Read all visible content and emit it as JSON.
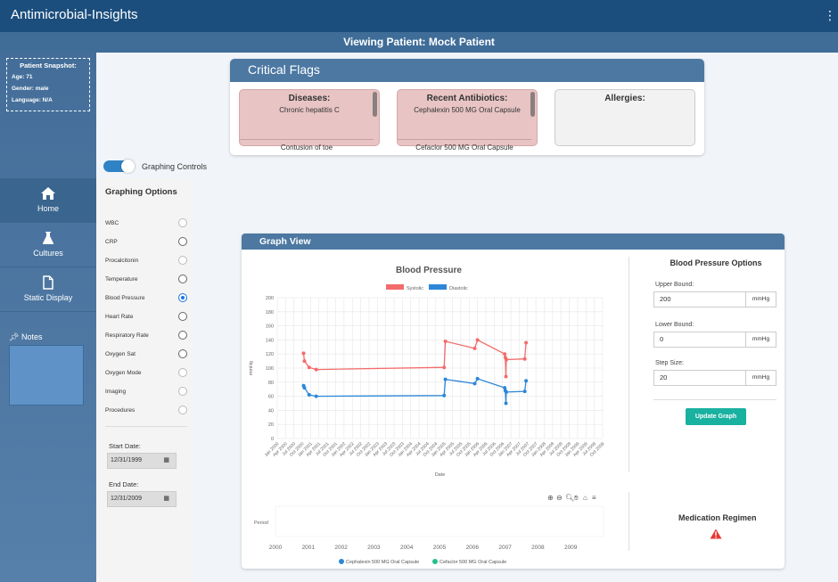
{
  "app": {
    "title": "Antimicrobial-Insights"
  },
  "patient_bar": "Viewing Patient: Mock Patient",
  "snapshot": {
    "title": "Patient Snapshot:",
    "age": "Age: 71",
    "gender": "Gender: male",
    "language": "Language: N/A"
  },
  "nav": {
    "home": "Home",
    "cultures": "Cultures",
    "static": "Static Display",
    "notes": "Notes"
  },
  "graphing_controls": "Graphing Controls",
  "options": {
    "title": "Graphing Options",
    "items": [
      "WBC",
      "CRP",
      "Procalcitonin",
      "Temperature",
      "Blood Pressure",
      "Heart Rate",
      "Respiratory Rate",
      "Oxygen Sat",
      "Oxygen Mode",
      "Imaging",
      "Procedures"
    ],
    "selected": "Blood Pressure",
    "start_label": "Start Date:",
    "start_value": "12/31/1999",
    "end_label": "End Date:",
    "end_value": "12/31/2009"
  },
  "flags": {
    "title": "Critical Flags",
    "diseases_title": "Diseases:",
    "diseases": [
      "Chronic hepatitis C",
      "Contusion of toe"
    ],
    "antibiotics_title": "Recent Antibiotics:",
    "antibiotics": [
      "Cephalexin 500 MG Oral Capsule",
      "Cefaclor 500 MG Oral Capsule"
    ],
    "allergies_title": "Allergies:"
  },
  "graph_view": {
    "title": "Graph View"
  },
  "bp_options": {
    "title": "Blood Pressure Options",
    "upper_label": "Upper Bound:",
    "upper_value": "200",
    "lower_label": "Lower Bound:",
    "lower_value": "0",
    "step_label": "Step Size:",
    "step_value": "20",
    "unit": "mmHg",
    "button": "Update Graph"
  },
  "medication_regimen": "Medication Regimen",
  "chart_data": [
    {
      "type": "line",
      "title": "Blood Pressure",
      "xlabel": "Date",
      "ylabel": "mmHg",
      "ylim": [
        0,
        200
      ],
      "yticks": [
        0,
        20,
        40,
        60,
        80,
        100,
        120,
        140,
        160,
        180,
        200
      ],
      "grid": true,
      "legend": "top",
      "x_range": [
        "2000-01",
        "2009-10"
      ],
      "x_ticks": [
        "Jan 2000",
        "Apr 2000",
        "Jul 2000",
        "Oct 2000",
        "Jan 2001",
        "Apr 2001",
        "Jul 2001",
        "Oct 2001",
        "Jan 2002",
        "Apr 2002",
        "Jul 2002",
        "Oct 2002",
        "Jan 2003",
        "Apr 2003",
        "Jul 2003",
        "Oct 2003",
        "Jan 2004",
        "Apr 2004",
        "Jul 2004",
        "Oct 2004",
        "Jan 2005",
        "Apr 2005",
        "Jul 2005",
        "Oct 2005",
        "Jan 2006",
        "Apr 2006",
        "Jul 2006",
        "Oct 2006",
        "Jan 2007",
        "Apr 2007",
        "Jul 2007",
        "Oct 2007",
        "Jan 2008",
        "Apr 2008",
        "Jul 2008",
        "Oct 2008",
        "Jan 2009",
        "Apr 2009",
        "Jul 2009",
        "Oct 2009"
      ],
      "series": [
        {
          "name": "Systolic",
          "color": "#f36b6b",
          "points": [
            [
              "2000-10-15",
              121
            ],
            [
              "2000-10-25",
              110
            ],
            [
              "2000-12-15",
              101
            ],
            [
              "2001-03-01",
              98
            ],
            [
              "2005-01-01",
              101
            ],
            [
              "2005-01-15",
              138
            ],
            [
              "2005-12-01",
              128
            ],
            [
              "2006-01-01",
              140
            ],
            [
              "2006-10-25",
              120
            ],
            [
              "2006-11-01",
              115
            ],
            [
              "2006-11-08",
              88
            ],
            [
              "2006-11-12",
              112
            ],
            [
              "2007-06-01",
              113
            ],
            [
              "2007-06-15",
              136
            ]
          ]
        },
        {
          "name": "Diastolic",
          "color": "#2d87d8",
          "points": [
            [
              "2000-10-15",
              75
            ],
            [
              "2000-10-25",
              72
            ],
            [
              "2000-12-15",
              62
            ],
            [
              "2001-03-01",
              60
            ],
            [
              "2005-01-01",
              61
            ],
            [
              "2005-01-15",
              84
            ],
            [
              "2005-12-01",
              78
            ],
            [
              "2006-01-01",
              85
            ],
            [
              "2006-10-25",
              72
            ],
            [
              "2006-11-01",
              68
            ],
            [
              "2006-11-08",
              50
            ],
            [
              "2006-11-12",
              66
            ],
            [
              "2007-06-01",
              67
            ],
            [
              "2007-06-15",
              82
            ]
          ]
        }
      ]
    },
    {
      "type": "timeline",
      "y_category": "Period",
      "x_ticks": [
        "2000",
        "2001",
        "2002",
        "2003",
        "2004",
        "2005",
        "2006",
        "2007",
        "2008",
        "2009"
      ],
      "legend": "bottom",
      "series": [
        {
          "name": "Cephalexin 500 MG Oral Capsule",
          "color": "#2d87d8"
        },
        {
          "name": "Cefaclor 500 MG Oral Capsule",
          "color": "#25c08a"
        }
      ]
    }
  ]
}
